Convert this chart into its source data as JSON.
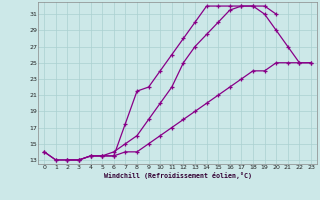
{
  "xlabel": "Windchill (Refroidissement éolien,°C)",
  "bg_color": "#cce8e8",
  "grid_color": "#aad0d0",
  "line_color": "#880088",
  "xlim": [
    -0.5,
    23.5
  ],
  "ylim": [
    12.5,
    32.5
  ],
  "xticks": [
    0,
    1,
    2,
    3,
    4,
    5,
    6,
    7,
    8,
    9,
    10,
    11,
    12,
    13,
    14,
    15,
    16,
    17,
    18,
    19,
    20,
    21,
    22,
    23
  ],
  "yticks": [
    13,
    15,
    17,
    19,
    21,
    23,
    25,
    27,
    29,
    31
  ],
  "curve1_x": [
    0,
    1,
    2,
    3,
    4,
    5,
    6,
    7,
    8,
    9,
    10,
    11,
    12,
    13,
    14,
    15,
    16,
    17,
    18,
    19,
    20
  ],
  "curve1_y": [
    14,
    13,
    13,
    13,
    13.5,
    13.5,
    14,
    15,
    16,
    18,
    20,
    22,
    25,
    27,
    28.5,
    30,
    31.5,
    32,
    32,
    32,
    31
  ],
  "curve2_x": [
    2,
    3,
    4,
    5,
    6,
    7,
    8,
    9,
    10,
    11,
    12,
    13,
    14,
    15,
    16,
    17,
    18,
    19,
    20,
    21,
    22,
    23
  ],
  "curve2_y": [
    13,
    13,
    13.5,
    13.5,
    13.5,
    17.5,
    21.5,
    22,
    24,
    26,
    28,
    30,
    32,
    32,
    32,
    32,
    32,
    31,
    29,
    27,
    25,
    25
  ],
  "curve3_x": [
    0,
    1,
    2,
    3,
    4,
    5,
    6,
    7,
    8,
    9,
    10,
    11,
    12,
    13,
    14,
    15,
    16,
    17,
    18,
    19,
    20,
    21,
    22,
    23
  ],
  "curve3_y": [
    14,
    13,
    13,
    13,
    13.5,
    13.5,
    13.5,
    14,
    14,
    15,
    16,
    17,
    18,
    19,
    20,
    21,
    22,
    23,
    24,
    24,
    25,
    25,
    25,
    25
  ]
}
